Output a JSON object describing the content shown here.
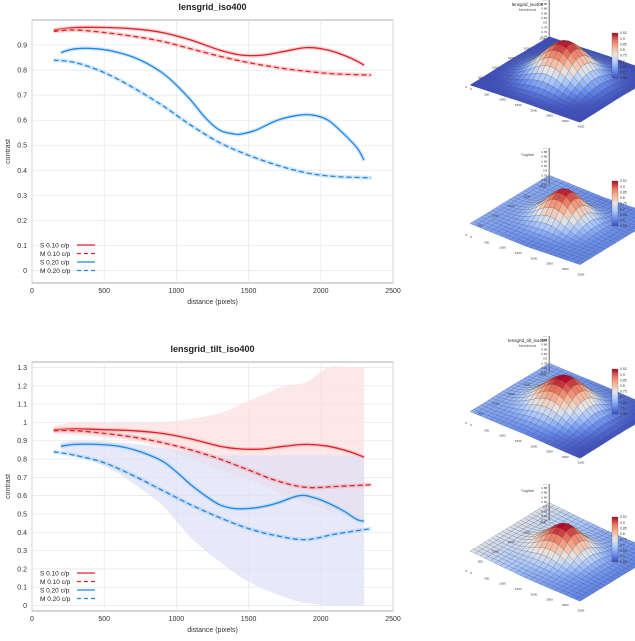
{
  "colors": {
    "red": "#e0202a",
    "red_light": "#f4a0a0",
    "blue": "#1e88e5",
    "blue_light": "#9ec9f0",
    "red_band": "#fbe0e0",
    "blue_band": "#dfe0f5",
    "grid": "#e6e6e6"
  },
  "chart_data": [
    {
      "type": "line",
      "title": "lensgrid_iso400",
      "xlabel": "distance (pixels)",
      "ylabel": "contrast",
      "xlim": [
        0,
        2500
      ],
      "ylim": [
        -0.05,
        1.0
      ],
      "xticks": [
        0,
        500,
        1000,
        1500,
        2000,
        2500
      ],
      "yticks": [
        0,
        0.1,
        0.2,
        0.3,
        0.4,
        0.5,
        0.6,
        0.7,
        0.8,
        0.9
      ],
      "grid": true,
      "legend_position": "bottom-left",
      "series": [
        {
          "name": "S 0.10 c/p",
          "style": "solid",
          "color": "red",
          "x": [
            150,
            300,
            500,
            700,
            900,
            1100,
            1300,
            1450,
            1600,
            1750,
            1900,
            2050,
            2200,
            2300
          ],
          "y": [
            0.96,
            0.97,
            0.97,
            0.965,
            0.95,
            0.92,
            0.88,
            0.86,
            0.86,
            0.875,
            0.89,
            0.88,
            0.85,
            0.82
          ]
        },
        {
          "name": "M 0.10 c/p",
          "style": "dashed",
          "color": "red",
          "x": [
            150,
            300,
            500,
            700,
            900,
            1100,
            1300,
            1500,
            1700,
            1900,
            2100,
            2350
          ],
          "y": [
            0.955,
            0.96,
            0.95,
            0.935,
            0.915,
            0.885,
            0.855,
            0.83,
            0.81,
            0.795,
            0.785,
            0.78
          ]
        },
        {
          "name": "S 0.20 c/p",
          "style": "solid",
          "color": "blue",
          "x": [
            200,
            300,
            450,
            600,
            750,
            900,
            1000,
            1100,
            1200,
            1300,
            1400,
            1450,
            1550,
            1700,
            1850,
            1950,
            2050,
            2150,
            2250,
            2300
          ],
          "y": [
            0.87,
            0.885,
            0.885,
            0.87,
            0.84,
            0.79,
            0.74,
            0.68,
            0.61,
            0.56,
            0.545,
            0.545,
            0.56,
            0.6,
            0.62,
            0.62,
            0.6,
            0.55,
            0.49,
            0.44
          ]
        },
        {
          "name": "M 0.20 c/p",
          "style": "dashed",
          "color": "blue",
          "x": [
            150,
            300,
            500,
            700,
            900,
            1100,
            1300,
            1500,
            1700,
            1900,
            2100,
            2350
          ],
          "y": [
            0.84,
            0.83,
            0.79,
            0.73,
            0.66,
            0.58,
            0.51,
            0.46,
            0.42,
            0.39,
            0.375,
            0.37
          ]
        }
      ]
    },
    {
      "type": "line",
      "title": "lensgrid_tilt_iso400",
      "xlabel": "distance (pixels)",
      "ylabel": "contrast",
      "xlim": [
        0,
        2500
      ],
      "ylim": [
        -0.03,
        1.33
      ],
      "xticks": [
        0,
        500,
        1000,
        1500,
        2000,
        2500
      ],
      "yticks": [
        0,
        0.1,
        0.2,
        0.3,
        0.4,
        0.5,
        0.6,
        0.7,
        0.8,
        0.9,
        1,
        1.1,
        1.2,
        1.3
      ],
      "grid": true,
      "legend_position": "bottom-left",
      "series": [
        {
          "name": "S 0.10 c/p",
          "style": "solid",
          "color": "red",
          "x": [
            150,
            300,
            500,
            700,
            900,
            1100,
            1300,
            1450,
            1600,
            1750,
            1900,
            2050,
            2200,
            2300
          ],
          "y": [
            0.96,
            0.965,
            0.96,
            0.955,
            0.94,
            0.91,
            0.87,
            0.855,
            0.855,
            0.87,
            0.88,
            0.87,
            0.84,
            0.81
          ],
          "band_low": [
            0.94,
            0.93,
            0.92,
            0.9,
            0.86,
            0.8,
            0.74,
            0.7,
            0.66,
            0.6,
            0.56,
            0.52,
            0.48,
            0.45
          ],
          "band_high": [
            0.98,
            1.0,
            1.0,
            1.0,
            1.0,
            1.02,
            1.05,
            1.1,
            1.15,
            1.2,
            1.22,
            1.3,
            1.3,
            1.3
          ]
        },
        {
          "name": "M 0.10 c/p",
          "style": "dashed",
          "color": "red",
          "x": [
            150,
            300,
            500,
            700,
            900,
            1100,
            1300,
            1500,
            1700,
            1900,
            2100,
            2350
          ],
          "y": [
            0.955,
            0.955,
            0.94,
            0.92,
            0.89,
            0.85,
            0.8,
            0.74,
            0.68,
            0.645,
            0.65,
            0.66
          ]
        },
        {
          "name": "S 0.20 c/p",
          "style": "solid",
          "color": "blue",
          "x": [
            200,
            300,
            450,
            600,
            750,
            900,
            1000,
            1100,
            1200,
            1300,
            1400,
            1500,
            1600,
            1700,
            1850,
            1950,
            2050,
            2150,
            2250,
            2300
          ],
          "y": [
            0.87,
            0.88,
            0.88,
            0.87,
            0.84,
            0.79,
            0.73,
            0.66,
            0.6,
            0.55,
            0.53,
            0.53,
            0.54,
            0.56,
            0.6,
            0.59,
            0.56,
            0.52,
            0.47,
            0.46
          ],
          "band_low": [
            0.85,
            0.82,
            0.78,
            0.72,
            0.64,
            0.55,
            0.46,
            0.37,
            0.3,
            0.24,
            0.18,
            0.13,
            0.09,
            0.06,
            0.02,
            0.01,
            0.0,
            0.0,
            0.0,
            0.0
          ],
          "band_high": [
            0.89,
            0.9,
            0.9,
            0.89,
            0.88,
            0.86,
            0.85,
            0.84,
            0.83,
            0.82,
            0.82,
            0.82,
            0.82,
            0.82,
            0.82,
            0.82,
            0.82,
            0.82,
            0.82,
            0.82
          ]
        },
        {
          "name": "M 0.20 c/p",
          "style": "dashed",
          "color": "blue",
          "x": [
            150,
            300,
            500,
            700,
            900,
            1100,
            1300,
            1500,
            1700,
            1900,
            2100,
            2350
          ],
          "y": [
            0.84,
            0.82,
            0.78,
            0.71,
            0.63,
            0.55,
            0.48,
            0.42,
            0.38,
            0.36,
            0.39,
            0.42
          ]
        }
      ]
    },
    {
      "type": "heatmap",
      "title": "lensgrid_iso400",
      "subtitle": "Meridional",
      "colorbar_ticks": [
        "0.92",
        "0.9",
        "0.85",
        "0.8",
        "0.75",
        "0.7",
        "0.65",
        "0.6",
        "0.55"
      ],
      "x_ticks": [
        "0",
        "500",
        "1000",
        "1500",
        "2000",
        "2500",
        "3000",
        "3500"
      ],
      "y_ticks": [
        "0",
        "500",
        "1000",
        "1500",
        "2000",
        "2500"
      ],
      "z_ticks": [
        "0.92",
        "0.9",
        "0.88",
        "0.86",
        "0.84",
        "0.82",
        "0.8",
        "0.78",
        "0.76",
        "0.74"
      ]
    },
    {
      "type": "heatmap",
      "title": "",
      "subtitle": "Sagittal",
      "colorbar_ticks": [
        "0.92",
        "0.9",
        "0.85",
        "0.8",
        "0.75",
        "0.7",
        "0.65",
        "0.6",
        "0.55"
      ],
      "x_ticks": [
        "0",
        "500",
        "1000",
        "1500",
        "2000",
        "2500",
        "3000",
        "3500"
      ],
      "y_ticks": [
        "0",
        "500",
        "1000",
        "1500",
        "2000",
        "2500"
      ],
      "z_ticks": [
        "0.92",
        "0.9",
        "0.88",
        "0.86",
        "0.84",
        "0.82",
        "0.8",
        "0.78",
        "0.76",
        "0.74"
      ]
    },
    {
      "type": "heatmap",
      "title": "lensgrid_tilt_iso400",
      "subtitle": "Meridional",
      "colorbar_ticks": [
        "0.92",
        "0.9",
        "0.85",
        "0.8",
        "0.75",
        "0.7",
        "0.65",
        "0.6",
        "0.55"
      ],
      "x_ticks": [
        "0",
        "500",
        "1000",
        "1500",
        "2000",
        "2500",
        "3000",
        "3500"
      ],
      "y_ticks": [
        "0",
        "500",
        "1000",
        "1500",
        "2000",
        "2500"
      ],
      "z_ticks": [
        "0.92",
        "0.9",
        "0.88",
        "0.86",
        "0.84",
        "0.82",
        "0.8",
        "0.78",
        "0.76",
        "0.74"
      ]
    },
    {
      "type": "heatmap",
      "title": "",
      "subtitle": "Sagittal",
      "colorbar_ticks": [
        "0.92",
        "0.9",
        "0.85",
        "0.8",
        "0.75",
        "0.7",
        "0.65",
        "0.6",
        "0.55"
      ],
      "x_ticks": [
        "0",
        "500",
        "1000",
        "1500",
        "2000",
        "2500",
        "3000",
        "3500"
      ],
      "y_ticks": [
        "0",
        "500",
        "1000",
        "1500",
        "2000",
        "2500"
      ],
      "z_ticks": [
        "0.92",
        "0.9",
        "0.88",
        "0.86",
        "0.84",
        "0.82",
        "0.8",
        "0.78",
        "0.76",
        "0.74"
      ]
    }
  ]
}
